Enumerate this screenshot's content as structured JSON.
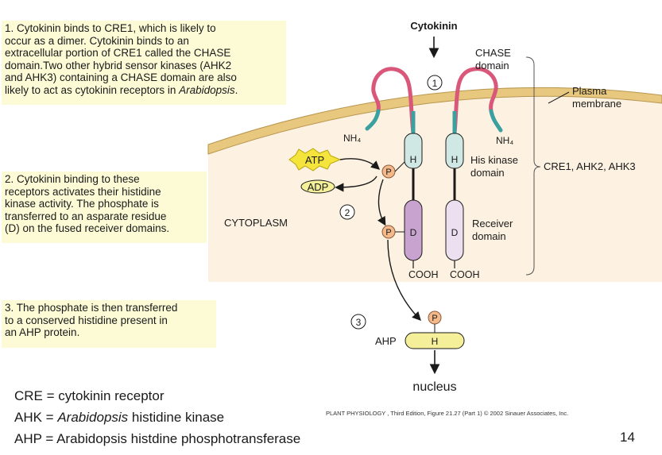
{
  "notes": {
    "note1": [
      "1. Cytokinin binds to CRE1, which is likely to",
      "occur as a dimer. Cytokinin binds to an",
      "extracellular portion of CRE1 called the CHASE",
      "domain.Two other hybrid sensor kinases (AHK2",
      "and AHK3) containing a CHASE domain are also",
      "likely to act as cytokinin receptors in Arabidopsis."
    ],
    "note2": [
      "2. Cytokinin binding to these",
      "receptors activates their histidine",
      "kinase activity. The phosphate is",
      "transferred to an asparate residue",
      "(D) on the fused receiver domains."
    ],
    "note3": [
      "3. The phosphate is then transferred",
      "to a conserved histidine present in",
      "an AHP protein."
    ]
  },
  "diagram": {
    "cytokinin": "Cytokinin",
    "chase_domain_1": "CHASE",
    "chase_domain_2": "domain",
    "plasma_membrane_1": "Plasma",
    "plasma_membrane_2": "membrane",
    "nh4_left": "NH₄",
    "nh4_right": "NH₄",
    "his_kinase_1": "His kinase",
    "his_kinase_2": "domain",
    "receiver_1": "Receiver",
    "receiver_2": "domain",
    "receptors": "CRE1, AHK2, AHK3",
    "cytoplasm": "CYTOPLASM",
    "atp": "ATP",
    "adp": "ADP",
    "p": "P",
    "h": "H",
    "d": "D",
    "cooh": "COOH",
    "step1": "1",
    "step2": "2",
    "step3": "3",
    "ahp": "AHP",
    "nucleus": "nucleus"
  },
  "abbreviations": {
    "cre": "CRE = cytokinin receptor",
    "ahk_prefix": "AHK = ",
    "ahk_italic": "Arabidopsis",
    "ahk_suffix": " histidine kinase",
    "ahp": "AHP = Arabidopsis histdine phosphotransferase"
  },
  "credit": "PLANT PHYSIOLOGY , Third Edition, Figure 21.27 (Part 1)  © 2002 Sinauer Associates, Inc.",
  "page_number": "14",
  "colors": {
    "membrane": "#e8c77e",
    "cytoplasm": "#fdf2e1",
    "receptor_loop": "#d9587a",
    "tm_helix": "#3aa0a0",
    "his_domain": "#cfe8e4",
    "receiver_left": "#c9a3cf",
    "receiver_right": "#ece0f0",
    "atp_star": "#f5e43c",
    "phosphate": "#f4b98a",
    "ahp_fill": "#f5ef9a"
  }
}
